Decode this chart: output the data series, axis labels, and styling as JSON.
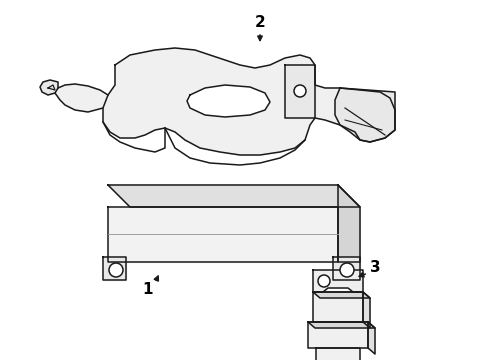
{
  "background_color": "#ffffff",
  "line_color": "#1a1a1a",
  "fill_color": "#f5f5f5",
  "figsize": [
    4.9,
    3.6
  ],
  "dpi": 100,
  "xlim": [
    0,
    490
  ],
  "ylim": [
    0,
    360
  ]
}
